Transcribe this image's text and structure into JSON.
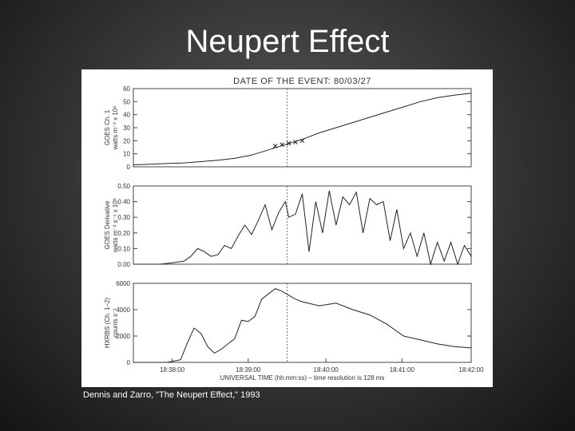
{
  "slide": {
    "title": "Neupert Effect",
    "caption": "Dennis and Zarro, \"The Neupert Effect,\" 1993"
  },
  "chart_data": [
    {
      "type": "line",
      "title": "DATE OF THE EVENT: 80/03/27",
      "ylabel_line1": "GOES Ch. 1",
      "ylabel_line2": "watts m⁻² x 10⁶",
      "ylim": [
        0,
        60
      ],
      "yticks": [
        "0",
        "10",
        "20",
        "30",
        "40",
        "50",
        "60"
      ],
      "ytick_values": [
        0,
        10,
        20,
        30,
        40,
        50,
        60
      ],
      "x": [
        0,
        0.05,
        0.1,
        0.15,
        0.2,
        0.25,
        0.3,
        0.35,
        0.4,
        0.45,
        0.5,
        0.55,
        0.6,
        0.65,
        0.7,
        0.75,
        0.8,
        0.85,
        0.9,
        0.95,
        1.0
      ],
      "values": [
        1.5,
        2,
        2.5,
        3,
        4,
        5,
        6.5,
        9,
        13,
        17,
        21,
        26,
        30,
        34,
        38,
        42,
        46,
        50,
        53,
        55,
        56.5
      ],
      "markers_x": [
        0.42,
        0.44,
        0.46,
        0.48,
        0.5
      ],
      "markers_y": [
        16,
        17,
        18,
        19,
        20
      ],
      "dashed_x": 0.455
    },
    {
      "type": "line",
      "ylabel_line1": "GOES Derivative",
      "ylabel_line2": "watts m⁻² s⁻¹ x 10⁶",
      "ylim": [
        0,
        0.5
      ],
      "yticks": [
        "0.00",
        "0.10",
        "0.20",
        "0.30",
        "0.40",
        "0.50"
      ],
      "ytick_values": [
        0,
        0.1,
        0.2,
        0.3,
        0.4,
        0.5
      ],
      "x": [
        0,
        0.08,
        0.12,
        0.15,
        0.17,
        0.19,
        0.21,
        0.23,
        0.25,
        0.27,
        0.29,
        0.31,
        0.33,
        0.35,
        0.37,
        0.39,
        0.41,
        0.43,
        0.45,
        0.46,
        0.48,
        0.5,
        0.52,
        0.54,
        0.56,
        0.58,
        0.6,
        0.62,
        0.64,
        0.66,
        0.68,
        0.7,
        0.72,
        0.74,
        0.76,
        0.78,
        0.8,
        0.82,
        0.84,
        0.86,
        0.88,
        0.9,
        0.92,
        0.94,
        0.96,
        0.98,
        1.0
      ],
      "values": [
        0,
        0,
        0.01,
        0.02,
        0.05,
        0.1,
        0.08,
        0.05,
        0.06,
        0.12,
        0.1,
        0.18,
        0.25,
        0.19,
        0.28,
        0.38,
        0.22,
        0.33,
        0.4,
        0.3,
        0.32,
        0.45,
        0.08,
        0.4,
        0.2,
        0.47,
        0.25,
        0.43,
        0.38,
        0.46,
        0.2,
        0.42,
        0.38,
        0.4,
        0.15,
        0.35,
        0.1,
        0.2,
        0.05,
        0.2,
        0.0,
        0.14,
        0.02,
        0.14,
        0.0,
        0.12,
        0.05
      ],
      "dashed_x": 0.455
    },
    {
      "type": "line",
      "ylabel_line1": "HXRBS (Ch. 1–2)",
      "ylabel_line2": "counts s⁻¹",
      "ylim": [
        0,
        6000
      ],
      "yticks": [
        "0",
        "2000",
        "4000",
        "6000"
      ],
      "ytick_values": [
        0,
        2000,
        4000,
        6000
      ],
      "x": [
        0,
        0.1,
        0.14,
        0.16,
        0.18,
        0.2,
        0.22,
        0.24,
        0.26,
        0.28,
        0.3,
        0.32,
        0.34,
        0.36,
        0.38,
        0.4,
        0.42,
        0.44,
        0.46,
        0.48,
        0.5,
        0.55,
        0.6,
        0.65,
        0.7,
        0.75,
        0.8,
        0.85,
        0.9,
        0.95,
        1.0
      ],
      "values": [
        0,
        0,
        200,
        1500,
        2600,
        2200,
        1200,
        700,
        1000,
        1400,
        1800,
        3200,
        3100,
        3500,
        4800,
        5200,
        5600,
        5400,
        5100,
        4800,
        4600,
        4300,
        4500,
        4000,
        3600,
        2900,
        2000,
        1700,
        1400,
        1200,
        1100
      ],
      "dashed_x": 0.455,
      "xticks": [
        "18:38:00",
        "18:39:00",
        "18:40:00",
        "18:41:00",
        "18:42:00"
      ],
      "xtick_values": [
        0.115,
        0.34,
        0.57,
        0.795,
        1.0
      ],
      "xlabel": "UNIVERSAL TIME (hh:mm:ss) – time resolution is 128 ms"
    }
  ]
}
